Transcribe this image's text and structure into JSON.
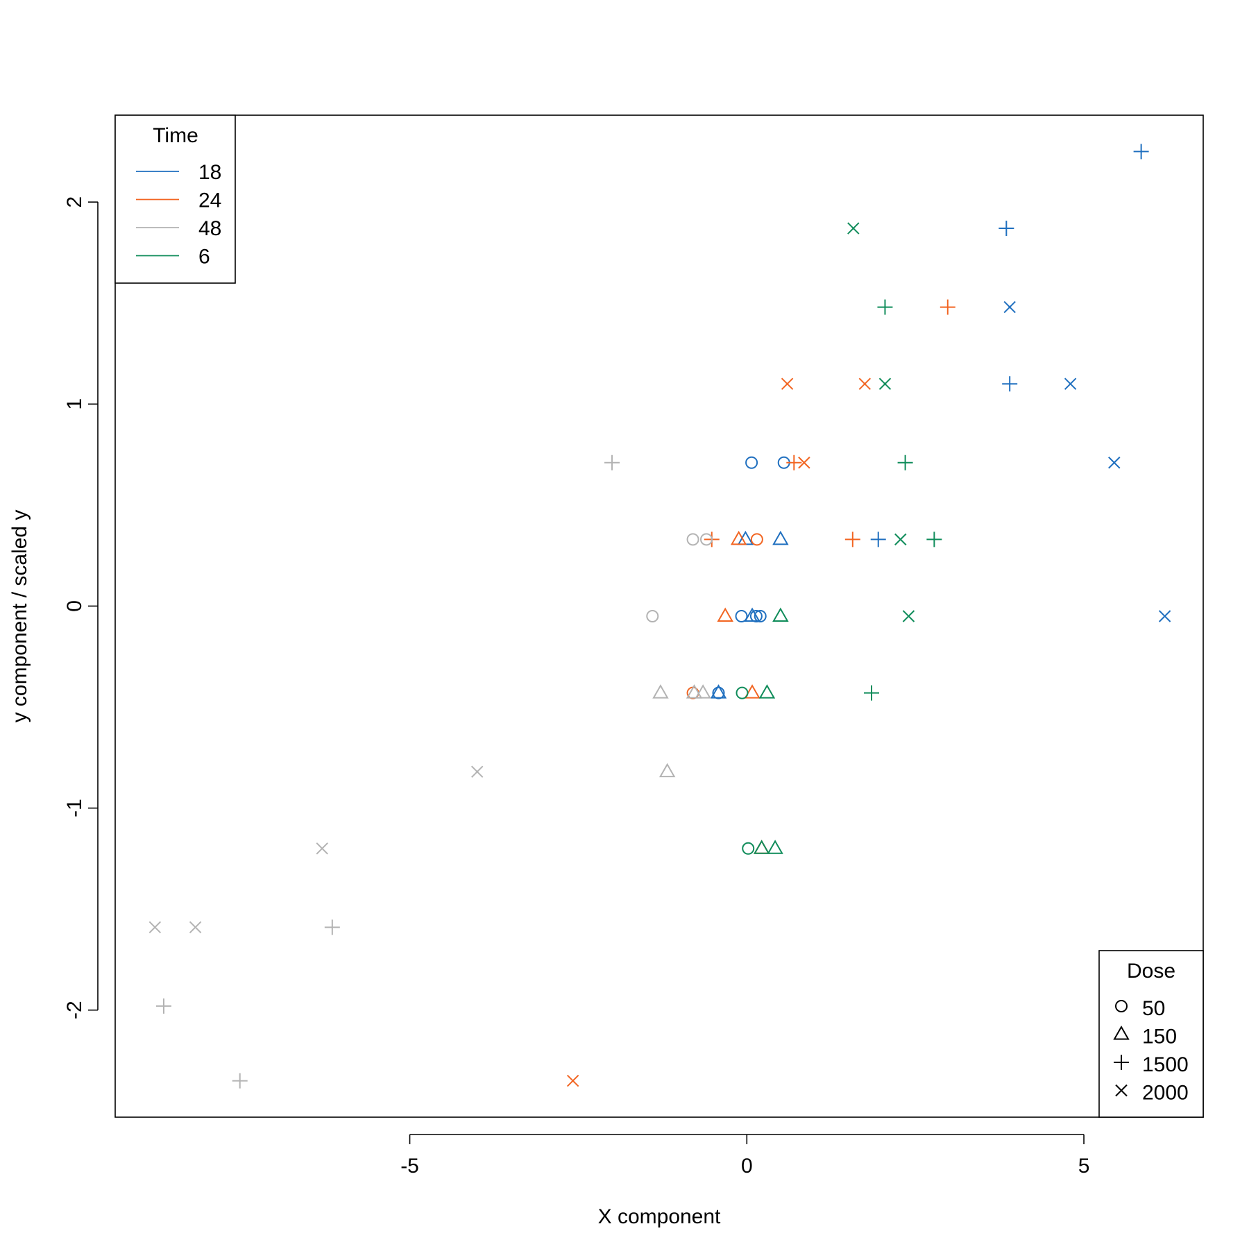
{
  "chart_data": {
    "type": "scatter",
    "title": "",
    "xlabel": "X component",
    "ylabel": "y component / scaled y",
    "xlim": [
      -9.37,
      6.77
    ],
    "ylim": [
      -2.53,
      2.43
    ],
    "x_ticks": [
      -5,
      0,
      5
    ],
    "y_ticks": [
      -2,
      -1,
      0,
      1,
      2
    ],
    "x_tick_labels": [
      "-5",
      "0",
      "5"
    ],
    "y_tick_labels": [
      "-2",
      "-1",
      "0",
      "1",
      "2"
    ],
    "grid": false,
    "colors": {
      "18": "#1f6fbf",
      "24": "#f26522",
      "48": "#b3b3b3",
      "6": "#0f8c5a"
    },
    "legend_time": {
      "title": "Time",
      "position": "top-left",
      "entries": [
        {
          "label": "18",
          "color": "#1f6fbf"
        },
        {
          "label": "24",
          "color": "#f26522"
        },
        {
          "label": "48",
          "color": "#b3b3b3"
        },
        {
          "label": "6",
          "color": "#0f8c5a"
        }
      ]
    },
    "legend_dose": {
      "title": "Dose",
      "position": "bottom-right",
      "entries": [
        {
          "label": "50",
          "shape": "circle"
        },
        {
          "label": "150",
          "shape": "triangle"
        },
        {
          "label": "1500",
          "shape": "plus"
        },
        {
          "label": "2000",
          "shape": "cross"
        }
      ]
    },
    "points": [
      {
        "x": 5.85,
        "y": 2.25,
        "time": "18",
        "dose": "1500"
      },
      {
        "x": 3.85,
        "y": 1.87,
        "time": "18",
        "dose": "1500"
      },
      {
        "x": 3.9,
        "y": 1.48,
        "time": "18",
        "dose": "2000"
      },
      {
        "x": 3.9,
        "y": 1.1,
        "time": "18",
        "dose": "1500"
      },
      {
        "x": 4.8,
        "y": 1.1,
        "time": "18",
        "dose": "2000"
      },
      {
        "x": 5.45,
        "y": 0.71,
        "time": "18",
        "dose": "2000"
      },
      {
        "x": 6.2,
        "y": -0.05,
        "time": "18",
        "dose": "2000"
      },
      {
        "x": 1.95,
        "y": 0.33,
        "time": "18",
        "dose": "1500"
      },
      {
        "x": 0.5,
        "y": 0.33,
        "time": "18",
        "dose": "150"
      },
      {
        "x": -0.02,
        "y": 0.33,
        "time": "18",
        "dose": "150"
      },
      {
        "x": 0.07,
        "y": 0.71,
        "time": "18",
        "dose": "50"
      },
      {
        "x": 0.55,
        "y": 0.71,
        "time": "18",
        "dose": "50"
      },
      {
        "x": -0.08,
        "y": -0.05,
        "time": "18",
        "dose": "50"
      },
      {
        "x": 0.08,
        "y": -0.05,
        "time": "18",
        "dose": "150"
      },
      {
        "x": 0.14,
        "y": -0.05,
        "time": "18",
        "dose": "50"
      },
      {
        "x": 0.2,
        "y": -0.05,
        "time": "18",
        "dose": "50"
      },
      {
        "x": -0.42,
        "y": -0.43,
        "time": "18",
        "dose": "150"
      },
      {
        "x": -0.42,
        "y": -0.43,
        "time": "18",
        "dose": "50"
      },
      {
        "x": 2.98,
        "y": 1.48,
        "time": "24",
        "dose": "1500"
      },
      {
        "x": 0.6,
        "y": 1.1,
        "time": "24",
        "dose": "2000"
      },
      {
        "x": 1.75,
        "y": 1.1,
        "time": "24",
        "dose": "2000"
      },
      {
        "x": 0.7,
        "y": 0.71,
        "time": "24",
        "dose": "1500"
      },
      {
        "x": 0.85,
        "y": 0.71,
        "time": "24",
        "dose": "2000"
      },
      {
        "x": 1.57,
        "y": 0.33,
        "time": "24",
        "dose": "1500"
      },
      {
        "x": -0.52,
        "y": 0.33,
        "time": "24",
        "dose": "1500"
      },
      {
        "x": -0.12,
        "y": 0.33,
        "time": "24",
        "dose": "150"
      },
      {
        "x": 0.15,
        "y": 0.33,
        "time": "24",
        "dose": "50"
      },
      {
        "x": -0.32,
        "y": -0.05,
        "time": "24",
        "dose": "150"
      },
      {
        "x": 0.08,
        "y": -0.43,
        "time": "24",
        "dose": "150"
      },
      {
        "x": -0.8,
        "y": -0.43,
        "time": "24",
        "dose": "50"
      },
      {
        "x": 0.22,
        "y": -1.2,
        "time": "24",
        "dose": "150"
      },
      {
        "x": -2.58,
        "y": -2.35,
        "time": "24",
        "dose": "2000"
      },
      {
        "x": -2.0,
        "y": 0.71,
        "time": "48",
        "dose": "1500"
      },
      {
        "x": -0.8,
        "y": 0.33,
        "time": "48",
        "dose": "50"
      },
      {
        "x": -0.6,
        "y": 0.33,
        "time": "48",
        "dose": "50"
      },
      {
        "x": -1.4,
        "y": -0.05,
        "time": "48",
        "dose": "50"
      },
      {
        "x": -1.28,
        "y": -0.43,
        "time": "48",
        "dose": "150"
      },
      {
        "x": -0.78,
        "y": -0.43,
        "time": "48",
        "dose": "150"
      },
      {
        "x": -0.65,
        "y": -0.43,
        "time": "48",
        "dose": "150"
      },
      {
        "x": -1.18,
        "y": -0.82,
        "time": "48",
        "dose": "150"
      },
      {
        "x": -4.0,
        "y": -0.82,
        "time": "48",
        "dose": "2000"
      },
      {
        "x": -6.3,
        "y": -1.2,
        "time": "48",
        "dose": "2000"
      },
      {
        "x": -6.15,
        "y": -1.59,
        "time": "48",
        "dose": "1500"
      },
      {
        "x": -8.78,
        "y": -1.59,
        "time": "48",
        "dose": "2000"
      },
      {
        "x": -8.18,
        "y": -1.59,
        "time": "48",
        "dose": "2000"
      },
      {
        "x": -8.65,
        "y": -1.98,
        "time": "48",
        "dose": "1500"
      },
      {
        "x": -7.52,
        "y": -2.35,
        "time": "48",
        "dose": "1500"
      },
      {
        "x": 1.58,
        "y": 1.87,
        "time": "6",
        "dose": "2000"
      },
      {
        "x": 2.05,
        "y": 1.48,
        "time": "6",
        "dose": "1500"
      },
      {
        "x": 2.05,
        "y": 1.1,
        "time": "6",
        "dose": "2000"
      },
      {
        "x": 2.35,
        "y": 0.71,
        "time": "6",
        "dose": "1500"
      },
      {
        "x": 2.28,
        "y": 0.33,
        "time": "6",
        "dose": "2000"
      },
      {
        "x": 2.78,
        "y": 0.33,
        "time": "6",
        "dose": "1500"
      },
      {
        "x": 0.5,
        "y": -0.05,
        "time": "6",
        "dose": "150"
      },
      {
        "x": 2.4,
        "y": -0.05,
        "time": "6",
        "dose": "2000"
      },
      {
        "x": 1.85,
        "y": -0.43,
        "time": "6",
        "dose": "1500"
      },
      {
        "x": -0.07,
        "y": -0.43,
        "time": "6",
        "dose": "50"
      },
      {
        "x": 0.3,
        "y": -0.43,
        "time": "6",
        "dose": "150"
      },
      {
        "x": 0.02,
        "y": -1.2,
        "time": "6",
        "dose": "50"
      },
      {
        "x": 0.22,
        "y": -1.2,
        "time": "6",
        "dose": "150"
      },
      {
        "x": 0.42,
        "y": -1.2,
        "time": "6",
        "dose": "150"
      }
    ]
  }
}
